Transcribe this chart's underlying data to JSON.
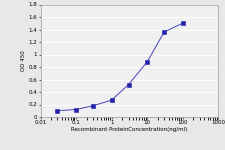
{
  "x": [
    0.03,
    0.1,
    0.3,
    1,
    3,
    10,
    30,
    100
  ],
  "y": [
    0.1,
    0.12,
    0.18,
    0.27,
    0.52,
    0.88,
    1.36,
    1.5
  ],
  "xlim": [
    0.01,
    1000
  ],
  "ylim": [
    0,
    1.8
  ],
  "yticks": [
    0,
    0.2,
    0.4,
    0.6,
    0.8,
    1.0,
    1.2,
    1.4,
    1.6,
    1.8
  ],
  "xticks": [
    0.01,
    0.1,
    1,
    10,
    100,
    1000
  ],
  "xtick_labels": [
    "0.01",
    "0.1",
    "1",
    "10",
    "100",
    "1000"
  ],
  "ytick_labels": [
    "0",
    "0.2",
    "0.4",
    "0.6",
    "0.8",
    "1",
    "1.2",
    "1.4",
    "1.6",
    "1.8"
  ],
  "xlabel": "Recombinant ProteinConcentration(ng/ml)",
  "ylabel": "OD 450",
  "line_color": "#4444bb",
  "marker_color": "#2222aa",
  "background_color": "#e8e8e8",
  "plot_bg_color": "#f0f0f0",
  "grid_color": "#ffffff",
  "figsize": [
    2.25,
    1.5
  ],
  "dpi": 100
}
